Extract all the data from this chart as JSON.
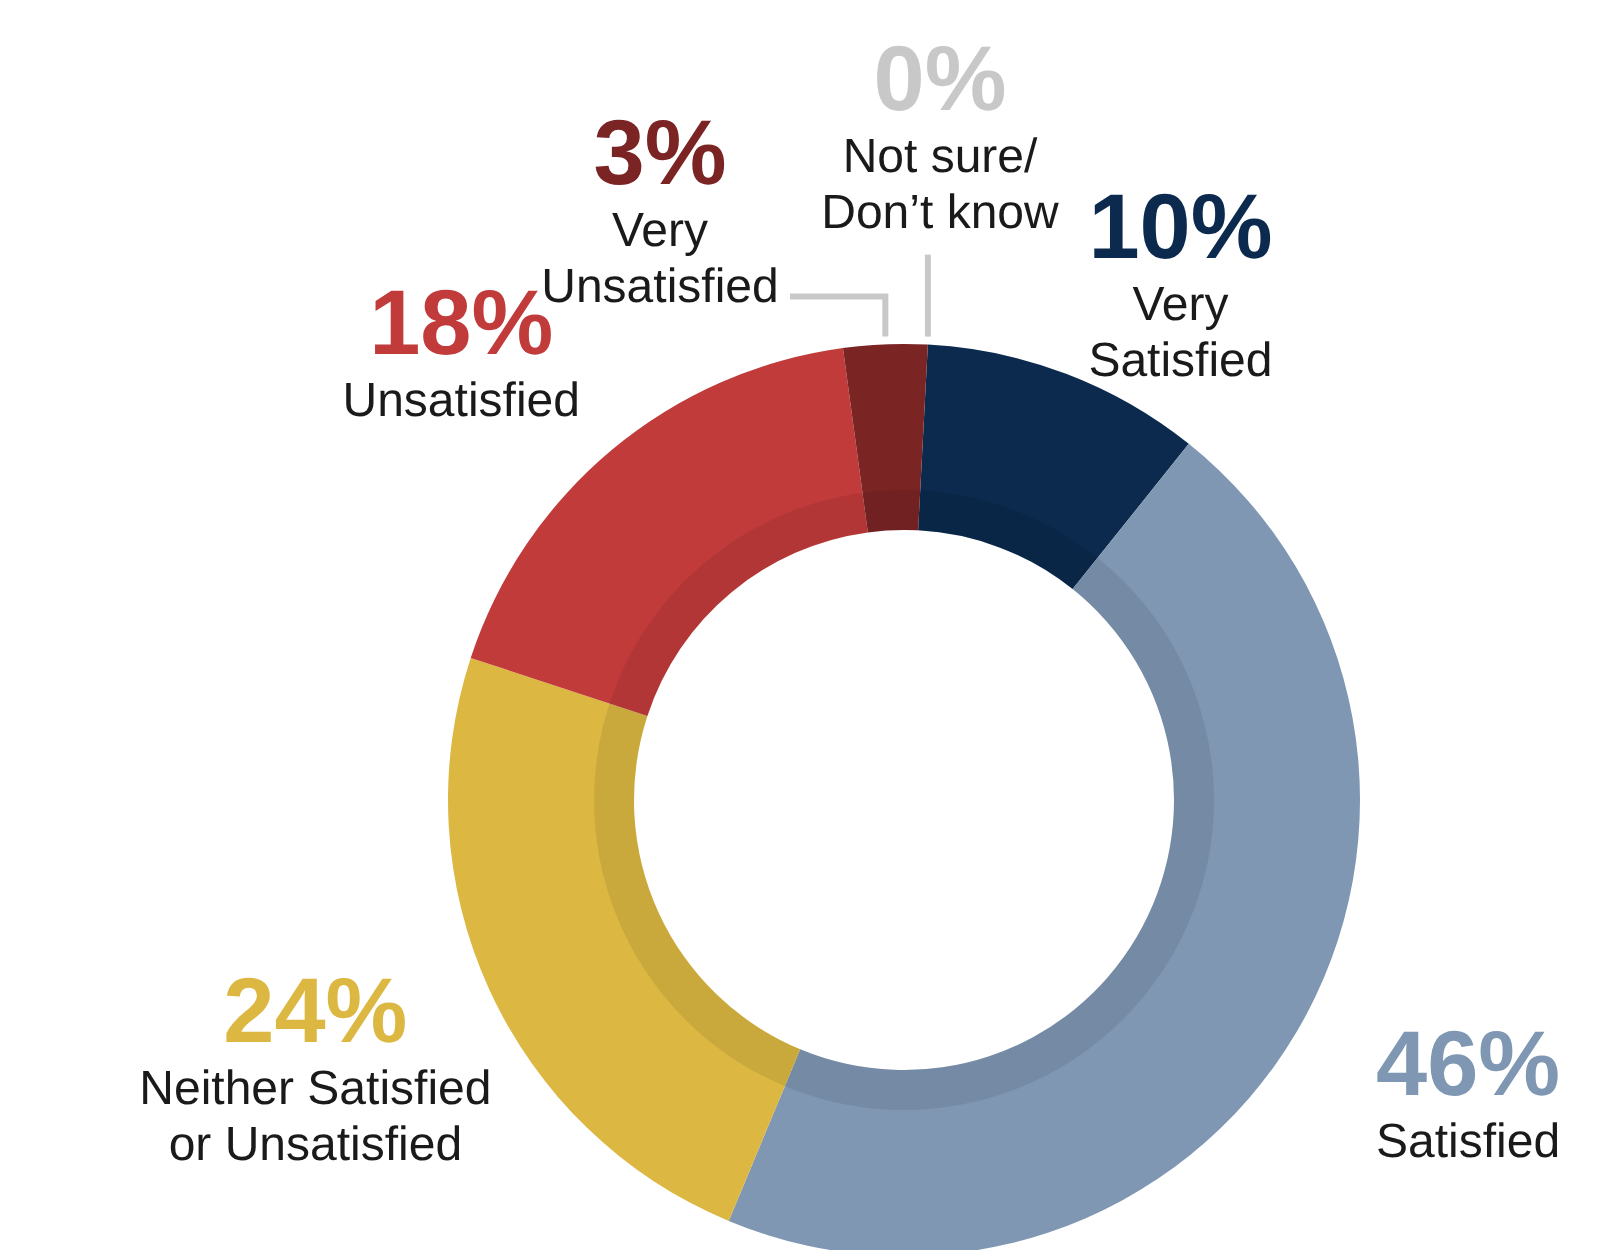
{
  "chart_data": {
    "type": "donut",
    "categories": [
      "Not sure/\nDon’t know",
      "Very\nSatisfied",
      "Satisfied",
      "Neither Satisfied\nor Unsatisfied",
      "Unsatisfied",
      "Very\nUnsatisfied"
    ],
    "values": [
      0,
      10,
      46,
      24,
      18,
      3
    ],
    "value_labels": [
      "0%",
      "10%",
      "46%",
      "24%",
      "18%",
      "3%"
    ],
    "colors": [
      "#c8c8c8",
      "#0b2a4e",
      "#7f97b3",
      "#dcb842",
      "#c23b3b",
      "#7b2424"
    ]
  }
}
